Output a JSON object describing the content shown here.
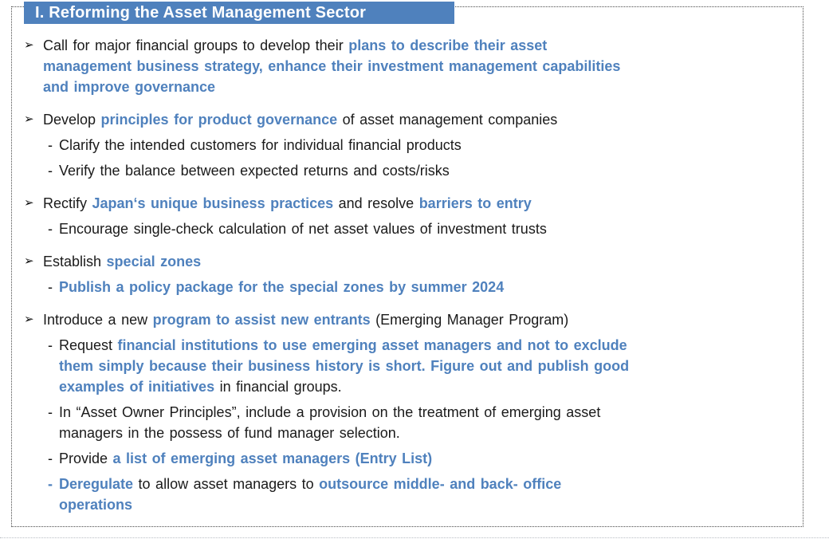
{
  "page": {
    "title": "I. Reforming the Asset Management Sector",
    "markers": {
      "arrow": "➢",
      "dash": "-"
    },
    "colors": {
      "accent": "#4f81bd",
      "banner_bg": "#4f81bd",
      "banner_text": "#ffffff",
      "body": "#1a1a1a"
    }
  },
  "bullets": [
    {
      "type": "arrow",
      "marker_accent": false,
      "segments": [
        {
          "style": "plain",
          "text": "Call for major financial groups to develop their "
        },
        {
          "style": "accent",
          "text": "plans to describe their asset\nmanagement business strategy, enhance their investment management capabilities\nand improve governance"
        }
      ]
    },
    {
      "type": "arrow",
      "marker_accent": false,
      "segments": [
        {
          "style": "plain",
          "text": "Develop "
        },
        {
          "style": "accent",
          "text": "principles for product governance"
        },
        {
          "style": "plain",
          "text": " of asset management companies"
        }
      ]
    },
    {
      "type": "dash",
      "marker_accent": false,
      "segments": [
        {
          "style": "plain",
          "text": "Clarify the intended customers for individual financial products"
        }
      ]
    },
    {
      "type": "dash",
      "marker_accent": false,
      "segments": [
        {
          "style": "plain",
          "text": "Verify the balance between expected returns and costs/risks"
        }
      ]
    },
    {
      "type": "arrow",
      "marker_accent": false,
      "segments": [
        {
          "style": "plain",
          "text": "Rectify "
        },
        {
          "style": "accent",
          "text": "Japan‘s unique business practices"
        },
        {
          "style": "plain",
          "text": " and resolve "
        },
        {
          "style": "accent",
          "text": "barriers to entry"
        }
      ]
    },
    {
      "type": "dash",
      "marker_accent": false,
      "segments": [
        {
          "style": "plain",
          "text": "Encourage single-check calculation of net asset values of investment trusts"
        }
      ]
    },
    {
      "type": "arrow",
      "marker_accent": false,
      "segments": [
        {
          "style": "plain",
          "text": "Establish "
        },
        {
          "style": "accent",
          "text": "special zones"
        }
      ]
    },
    {
      "type": "dash",
      "marker_accent": false,
      "segments": [
        {
          "style": "accent",
          "text": "Publish a policy package for the special zones by summer 2024"
        }
      ]
    },
    {
      "type": "arrow",
      "marker_accent": false,
      "segments": [
        {
          "style": "plain",
          "text": "Introduce a new "
        },
        {
          "style": "accent",
          "text": "program to assist new entrants"
        },
        {
          "style": "plain",
          "text": " (Emerging Manager Program)"
        }
      ]
    },
    {
      "type": "dash",
      "marker_accent": false,
      "segments": [
        {
          "style": "plain",
          "text": "Request "
        },
        {
          "style": "accent",
          "text": "financial institutions to use emerging asset managers and not to exclude\nthem simply because their business history is short. Figure out and publish good\nexamples of initiatives"
        },
        {
          "style": "plain",
          "text": " in financial groups."
        }
      ]
    },
    {
      "type": "dash",
      "marker_accent": false,
      "segments": [
        {
          "style": "plain",
          "text": "In “Asset Owner Principles”, include a provision on the treatment of emerging asset\nmanagers in the possess of fund manager selection."
        }
      ]
    },
    {
      "type": "dash",
      "marker_accent": false,
      "segments": [
        {
          "style": "plain",
          "text": "Provide "
        },
        {
          "style": "accent",
          "text": "a list of emerging asset managers (Entry List)"
        }
      ]
    },
    {
      "type": "dash",
      "marker_accent": true,
      "segments": [
        {
          "style": "accent",
          "text": "Deregulate"
        },
        {
          "style": "plain",
          "text": " to allow asset managers to "
        },
        {
          "style": "accent",
          "text": "outsource middle- and back- office\noperations"
        }
      ]
    }
  ]
}
